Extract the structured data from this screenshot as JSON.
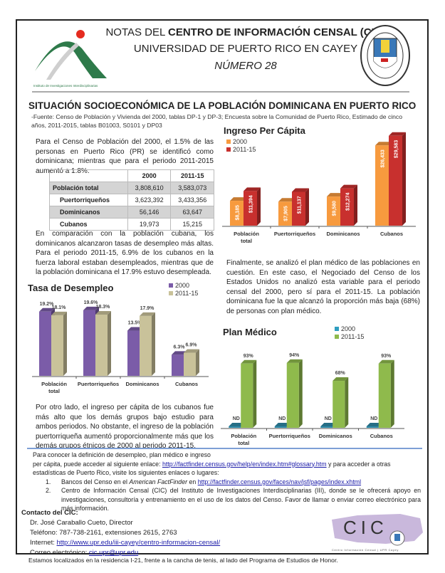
{
  "header": {
    "line1_prefix": "NOTAS DEL ",
    "line1_bold": "CENTRO DE INFORMACIÓN CENSAL (CIC)",
    "line2": "UNIVERSIDAD DE PUERTO RICO EN CAYEY",
    "line3": "NÚMERO 28",
    "logo_caption": "Instituto de Investigaciones Interdisciplinarias",
    "seal_text": "UNIVERSIDAD DE PUERTO RICO EN CAYEY 1967"
  },
  "title": "SITUACIÓN SOCIOECONÓMICA DE LA POBLACIÓN DOMINICANA EN PUERTO RICO",
  "source": "-Fuente: Censo de Población y Vivienda del 2000, tablas DP-1 y DP-3; Encuesta sobre la Comunidad de Puerto Rico, Estimado de cinco años, 2011-2015, tablas B01003, S0101 y DP03",
  "paragraphs": {
    "p1": "Para el Censo de Población del 2000, el 1.5% de las personas en Puerto Rico (PR) se identificó como dominicana; mientras que para el periodo 2011-2015 aumentó a 1.8%.",
    "p2": "En comparación con la población cubana, los dominicanos alcanzaron tasas de desempleo más altas. Para el periodo 2011-15, 6.9% de los cubanos en la fuerza laboral estaban desempleados, mientras que de la población dominicana el 17.9% estuvo desempleada.",
    "p3": "Por otro lado, el ingreso per cápita de los cubanos fue más alto que los demás grupos bajo estudio para ambos periodos. No obstante, el ingreso de la población puertorriqueña aumentó proporcionalmente más que los demás grupos étnicos de 2000 al periodo 2011-15.",
    "p4": "Finalmente, se analizó el plan médico de las poblaciones en cuestión. En este caso, el Negociado del Censo de los Estados Unidos no analizó esta variable para el periodo censal del 2000, pero sí para el 2011-15. La población dominicana fue la que alcanzó la proporción más baja (68%) de personas con plan médico."
  },
  "table": {
    "headers": [
      "",
      "2000",
      "2011-15"
    ],
    "rows": [
      [
        "Población total",
        "3,808,610",
        "3,583,073"
      ],
      [
        "Puertorriqueños",
        "3,623,392",
        "3,433,356"
      ],
      [
        "Dominicanos",
        "56,146",
        "63,647"
      ],
      [
        "Cubanos",
        "19,973",
        "15,215"
      ]
    ]
  },
  "chart_data": [
    {
      "type": "bar",
      "title": "Ingreso Per Cápita",
      "categories": [
        "Población total",
        "Puertorriqueños",
        "Dominicanos",
        "Cubanos"
      ],
      "series": [
        {
          "name": "2000",
          "values": [
            8185,
            7905,
            9580,
            26433
          ],
          "labels": [
            "$8,185",
            "$7,905",
            "$9,580",
            "$26,433"
          ],
          "color": "#f79a3e"
        },
        {
          "name": "2011-15",
          "values": [
            11394,
            11137,
            12274,
            29583
          ],
          "labels": [
            "$11,394",
            "$11,137",
            "$12,274",
            "$29,583"
          ],
          "color": "#c8302e"
        }
      ],
      "legend": "top-left",
      "ylim": [
        0,
        30000
      ]
    },
    {
      "type": "bar",
      "title": "Tasa de Desempleo",
      "categories": [
        "Población total",
        "Puertorriqueños",
        "Dominicanos",
        "Cubanos"
      ],
      "series": [
        {
          "name": "2000",
          "values": [
            19.2,
            19.6,
            13.5,
            6.3
          ],
          "labels": [
            "19.2%",
            "19.6%",
            "13.5%",
            "6.3%"
          ],
          "color": "#7b5ca8"
        },
        {
          "name": "2011-15",
          "values": [
            18.1,
            18.3,
            17.9,
            6.9
          ],
          "labels": [
            "18.1%",
            "18.3%",
            "17.9%",
            "6.9%"
          ],
          "color": "#c9c29a"
        }
      ],
      "legend": "top-right",
      "ylim": [
        0,
        20
      ]
    },
    {
      "type": "bar",
      "title": "Plan Médico",
      "categories": [
        "Población total",
        "Puertorriqueños",
        "Dominicanos",
        "Cubanos"
      ],
      "series": [
        {
          "name": "2000",
          "values": [
            0,
            0,
            0,
            0
          ],
          "labels": [
            "ND",
            "ND",
            "ND",
            "ND"
          ],
          "color": "#2f8aa8"
        },
        {
          "name": "2011-15",
          "values": [
            93,
            94,
            68,
            93
          ],
          "labels": [
            "93%",
            "94%",
            "68%",
            "93%"
          ],
          "color": "#8fba4c"
        }
      ],
      "legend": "top-right",
      "ylim": [
        0,
        100
      ]
    }
  ],
  "footer": {
    "intro1": "Para conocer la definición de desempleo, plan médico e ingreso",
    "intro2_pre": "per cápita, puede acceder al siguiente enlace: ",
    "glossary_link": "http://factfinder.census.gov/help/en/index.htm#glossary.htm",
    "intro2_post": " y para acceder a otras",
    "intro3": "estadísticas de Puerto Rico, visite los siguientes enlaces o lugares:",
    "item1_num": "1.",
    "item1_pre": "Bancos del Censo en el ",
    "item1_em": "American FactFinder",
    "item1_mid": " en ",
    "item1_link": "http://factfinder.census.gov/faces/nav/jsf/pages/index.xhtml",
    "item2_num": "2.",
    "item2": "Centro de Información Censal (CIC) del Instituto de Investigaciones Interdisciplinarias (III), donde se le ofrecerá apoyo en investigaciones, consultoría y entrenamiento en el uso de los datos del Censo.  Favor de llamar o enviar correo electrónico para más información."
  },
  "contact": {
    "heading": "Contacto del CIC:",
    "director": "Dr. José Caraballo Cueto, Director",
    "phone": "Teléfono: 787-738-2161, extensiones 2615, 2763",
    "internet_label": "Internet:  ",
    "internet_link": "http://www.upr.edu/iii-cayey/centro-informacion-censal/",
    "email_label": "Correo electrónico:  ",
    "email_link": "cic.upr@upr.edu",
    "location": "Estamos localizados en la residencia I-21, frente a la cancha de tenis, al lado del Programa de Estudios de Honor.",
    "cic_logo_text": "CIC",
    "cic_logo_caption": "Centro Información Censal | UPR Cayey"
  }
}
